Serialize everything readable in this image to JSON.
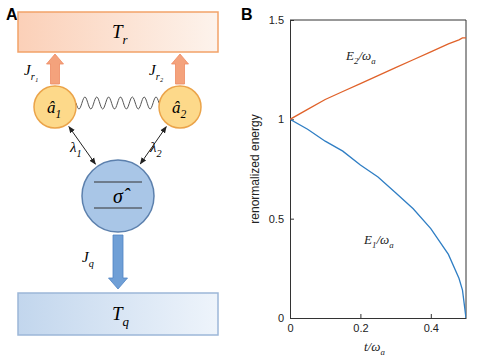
{
  "diagram": {
    "panel_labels": [
      "A",
      "B"
    ],
    "top_bath": {
      "label": [
        "T",
        "r"
      ]
    },
    "bottom_bath": {
      "label": [
        "T",
        "q"
      ]
    },
    "modes": [
      {
        "label": [
          "â",
          "1"
        ],
        "flux": [
          "J",
          "r₁"
        ],
        "coupling": [
          "λ",
          "1"
        ]
      },
      {
        "label": [
          "â",
          "2"
        ],
        "flux": [
          "J",
          "r₂"
        ],
        "coupling": [
          "λ",
          "2"
        ]
      }
    ],
    "qubit": {
      "label": "σ̂",
      "flux": [
        "J",
        "q"
      ]
    }
  },
  "chart_data": {
    "type": "line",
    "x": [
      0,
      0.05,
      0.1,
      0.15,
      0.2,
      0.25,
      0.3,
      0.35,
      0.4,
      0.45,
      0.48,
      0.49,
      0.5
    ],
    "series": [
      {
        "name": [
          "E",
          "1",
          "/ω",
          "a"
        ],
        "color": "#2f7ec4",
        "values": [
          1,
          0.95,
          0.89,
          0.84,
          0.77,
          0.71,
          0.63,
          0.55,
          0.45,
          0.32,
          0.2,
          0.14,
          0
        ]
      },
      {
        "name": [
          "E",
          "2",
          "/ω",
          "a"
        ],
        "color": "#e0622a",
        "values": [
          1,
          1.05,
          1.1,
          1.14,
          1.18,
          1.22,
          1.26,
          1.3,
          1.34,
          1.38,
          1.4,
          1.41,
          1.41
        ]
      }
    ],
    "x_label": [
      "t/ω",
      "a"
    ],
    "y_label": "renormalized energy",
    "xlim": [
      0,
      0.5
    ],
    "ylim": [
      0,
      1.5
    ],
    "xticks": [
      0,
      0.2,
      0.4
    ],
    "yticks": [
      0,
      0.5,
      1,
      1.5
    ],
    "grid": false
  }
}
